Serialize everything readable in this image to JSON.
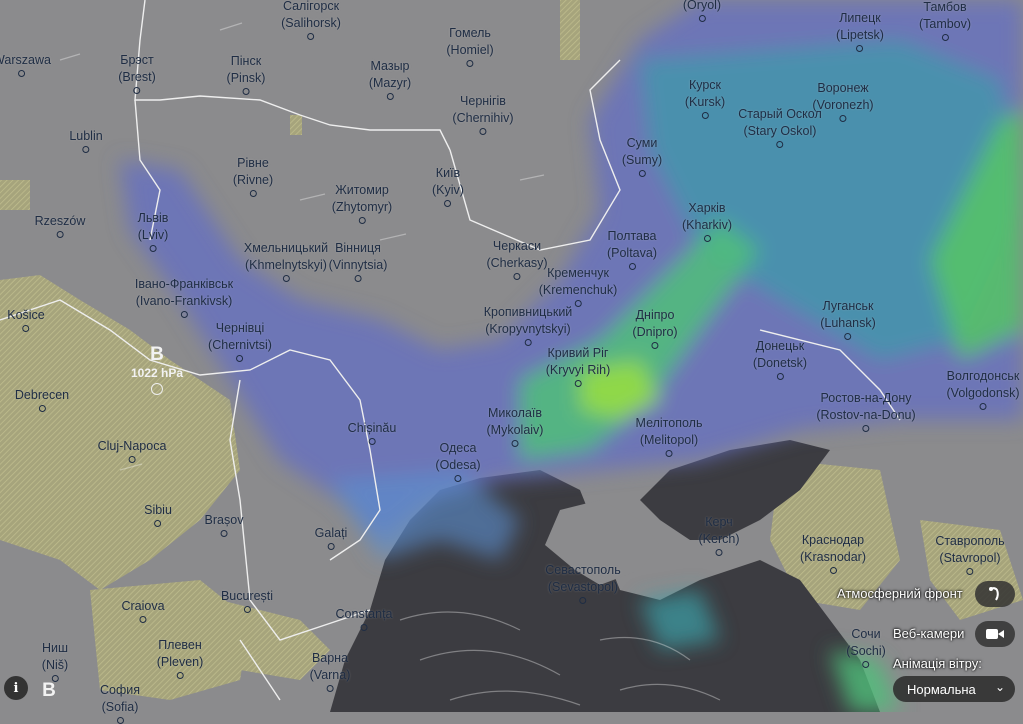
{
  "map": {
    "layer": "precipitation",
    "colors": {
      "land": "#8b8b8d",
      "sea": "#3c3c41",
      "rain_light": "#5a63b8",
      "rain_mid": "#3aa0a8",
      "rain_heavy": "#62d24a",
      "snow_hatch": "#b5b27a",
      "border": "#f0f0f0"
    }
  },
  "cities": [
    {
      "name": "Warszawa"
    },
    {
      "name": "Брэст",
      "latin": "(Brest)"
    },
    {
      "name": "Пінск",
      "latin": "(Pinsk)"
    },
    {
      "name": "Салігорск",
      "latin": "(Salihorsk)"
    },
    {
      "name": "Мазыр",
      "latin": "(Mazyr)"
    },
    {
      "name": "Гомель",
      "latin": "(Homiel)"
    },
    {
      "name": "Чернігів",
      "latin": "(Chernihiv)"
    },
    {
      "name": "",
      "latin": "(Oryol)"
    },
    {
      "name": "Липецк",
      "latin": "(Lipetsk)"
    },
    {
      "name": "Тамбов",
      "latin": "(Tambov)"
    },
    {
      "name": "Курск",
      "latin": "(Kursk)"
    },
    {
      "name": "Воронеж",
      "latin": "(Voronezh)"
    },
    {
      "name": "Старый Оскол",
      "latin": "(Stary Oskol)"
    },
    {
      "name": "Суми",
      "latin": "(Sumy)"
    },
    {
      "name": "Lublin"
    },
    {
      "name": "Rzeszów"
    },
    {
      "name": "Рівне",
      "latin": "(Rivne)"
    },
    {
      "name": "Житомир",
      "latin": "(Zhytomyr)"
    },
    {
      "name": "Київ",
      "latin": "(Kyiv)"
    },
    {
      "name": "Харків",
      "latin": "(Kharkiv)"
    },
    {
      "name": "Львів",
      "latin": "(Lviv)"
    },
    {
      "name": "Хмельницький",
      "latin": "(Khmelnytskyi)"
    },
    {
      "name": "Вінниця",
      "latin": "(Vinnytsia)"
    },
    {
      "name": "Черкаси",
      "latin": "(Cherkasy)"
    },
    {
      "name": "Полтава",
      "latin": "(Poltava)"
    },
    {
      "name": "Кременчук",
      "latin": "(Kremenchuk)"
    },
    {
      "name": "Івано-Франківськ",
      "latin": "(Ivano-Frankivsk)"
    },
    {
      "name": "Košice"
    },
    {
      "name": "Кропивницький",
      "latin": "(Kropyvnytskyi)"
    },
    {
      "name": "Дніпро",
      "latin": "(Dnipro)"
    },
    {
      "name": "Луганськ",
      "latin": "(Luhansk)"
    },
    {
      "name": "Чернівці",
      "latin": "(Chernivtsi)"
    },
    {
      "name": "Кривий Ріг",
      "latin": "(Kryvyi Rih)"
    },
    {
      "name": "Донецьк",
      "latin": "(Donetsk)"
    },
    {
      "name": "Debrecen"
    },
    {
      "name": "Ростов-на-Дону",
      "latin": "(Rostov-na-Donu)"
    },
    {
      "name": "Волгодонськ",
      "latin": "(Volgodonsk)"
    },
    {
      "name": "Миколаїв",
      "latin": "(Mykolaiv)"
    },
    {
      "name": "Мелітополь",
      "latin": "(Melitopol)"
    },
    {
      "name": "Chișinău"
    },
    {
      "name": "Cluj-Napoca"
    },
    {
      "name": "Одеса",
      "latin": "(Odesa)"
    },
    {
      "name": "Sibiu"
    },
    {
      "name": "Brașov"
    },
    {
      "name": "Керч",
      "latin": "(Kerch)"
    },
    {
      "name": "Краснодар",
      "latin": "(Krasnodar)"
    },
    {
      "name": "Ставрополь",
      "latin": "(Stavropol)"
    },
    {
      "name": "Galați"
    },
    {
      "name": "Севастополь",
      "latin": "(Sevastopol)"
    },
    {
      "name": "Craiova"
    },
    {
      "name": "București"
    },
    {
      "name": "Constanța"
    },
    {
      "name": "Сочи",
      "latin": "(Sochi)"
    },
    {
      "name": "Ниш",
      "latin": "(Niš)"
    },
    {
      "name": "Плевен",
      "latin": "(Pleven)"
    },
    {
      "name": "Варна",
      "latin": "(Varna)"
    },
    {
      "name": "София",
      "latin": "(Sofia)"
    }
  ],
  "pressure": [
    {
      "letter": "B",
      "value": "1022 hPa"
    },
    {
      "letter": "B",
      "value": ""
    }
  ],
  "controls": {
    "front_label": "Атмосферний фронт",
    "front_icon": "weather-front-icon",
    "webcams_label": "Веб-камери",
    "webcams_icon": "camera-icon",
    "wind_animation_label": "Анімація вітру:",
    "wind_animation_value": "Нормальна",
    "info_icon": "info-icon",
    "info_glyph": "i",
    "chevron": "⌄"
  }
}
